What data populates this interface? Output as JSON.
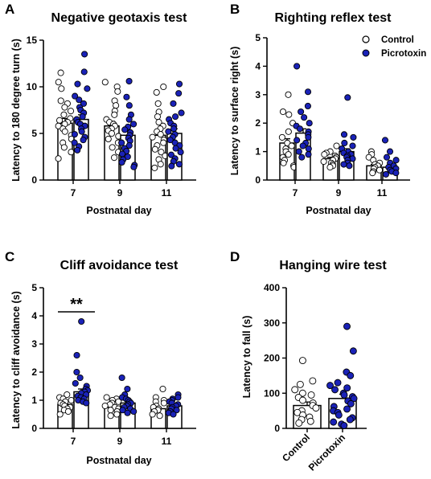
{
  "colors": {
    "control_fill": "#ffffff",
    "picrotoxin_fill": "#1a22b8",
    "stroke": "#000000"
  },
  "legend": {
    "items": [
      {
        "label": "Control",
        "color": "#ffffff"
      },
      {
        "label": "Picrotoxin",
        "color": "#1a22b8"
      }
    ]
  },
  "chart_data": [
    {
      "letter": "A",
      "type": "bar",
      "title": "Negative geotaxis test",
      "xlabel": "Postnatal day",
      "ylabel": "Latency to 180 degree turn (s)",
      "ylim": [
        0,
        15
      ],
      "yticks": [
        "0",
        "5",
        "10",
        "15"
      ],
      "categories": [
        "7",
        "9",
        "11"
      ],
      "grid": false,
      "series": [
        {
          "name": "Control",
          "values": [
            6.1,
            5.8,
            4.8
          ],
          "errors": [
            0.5,
            0.5,
            0.5
          ],
          "points": [
            [
              11.5,
              10.5,
              9.8,
              8.5,
              8.2,
              7.8,
              7.4,
              7.0,
              6.6,
              6.4,
              6.2,
              6.0,
              5.8,
              5.5,
              5.2,
              4.8,
              4.4,
              4.0,
              3.5,
              3.0,
              2.3
            ],
            [
              10.5,
              10.0,
              9.5,
              8.5,
              8.0,
              7.4,
              7.0,
              6.5,
              6.2,
              6.0,
              5.8,
              5.5,
              5.3,
              5.0,
              4.7,
              4.4,
              4.0,
              3.5,
              3.0,
              2.4
            ],
            [
              10.0,
              9.4,
              8.2,
              7.3,
              6.8,
              6.2,
              5.8,
              5.5,
              5.2,
              4.9,
              4.6,
              4.3,
              4.0,
              3.7,
              3.3,
              3.0,
              2.6,
              2.2,
              1.7,
              1.3
            ]
          ]
        },
        {
          "name": "Picrotoxin",
          "values": [
            6.5,
            4.8,
            5.0
          ],
          "errors": [
            0.5,
            0.5,
            0.5
          ],
          "points": [
            [
              13.5,
              11.6,
              10.3,
              9.8,
              9.0,
              8.6,
              8.2,
              7.8,
              7.5,
              7.2,
              6.8,
              6.5,
              6.2,
              6.0,
              5.8,
              5.5,
              5.2,
              4.9,
              4.6,
              4.3,
              4.0,
              3.6,
              3.2
            ],
            [
              10.6,
              8.9,
              8.0,
              7.0,
              6.5,
              6.0,
              5.7,
              5.4,
              5.1,
              4.8,
              4.5,
              4.2,
              4.0,
              3.7,
              3.4,
              3.1,
              2.8,
              2.5,
              2.2,
              1.9,
              1.6,
              1.4
            ],
            [
              10.3,
              9.3,
              8.2,
              7.2,
              6.8,
              6.5,
              6.1,
              5.8,
              5.5,
              5.2,
              4.9,
              4.6,
              4.3,
              4.0,
              3.7,
              3.4,
              3.0,
              2.7,
              2.3,
              2.0,
              1.7,
              1.5
            ]
          ]
        }
      ]
    },
    {
      "letter": "B",
      "type": "bar",
      "title": "Righting reflex test",
      "xlabel": "Postnatal day",
      "ylabel": "Latency to surface right (s)",
      "ylim": [
        0,
        5
      ],
      "yticks": [
        "0",
        "1",
        "2",
        "3",
        "4",
        "5"
      ],
      "categories": [
        "7",
        "9",
        "11"
      ],
      "grid": false,
      "legend_position": "top-right",
      "series": [
        {
          "name": "Control",
          "values": [
            1.3,
            0.75,
            0.5
          ],
          "errors": [
            0.15,
            0.05,
            0.05
          ],
          "points": [
            [
              3.0,
              2.4,
              2.3,
              2.0,
              1.7,
              1.5,
              1.3,
              1.2,
              1.1,
              1.0,
              0.9,
              0.8,
              0.7,
              0.6,
              0.5,
              0.45
            ],
            [
              1.2,
              1.0,
              0.95,
              0.9,
              0.85,
              0.8,
              0.75,
              0.7,
              0.65,
              0.6,
              0.55,
              0.5,
              0.45
            ],
            [
              1.0,
              0.9,
              0.8,
              0.7,
              0.6,
              0.55,
              0.5,
              0.45,
              0.4,
              0.35,
              0.3,
              0.25
            ]
          ]
        },
        {
          "name": "Picrotoxin",
          "values": [
            1.65,
            1.0,
            0.45
          ],
          "errors": [
            0.15,
            0.1,
            0.05
          ],
          "points": [
            [
              4.0,
              3.1,
              2.6,
              2.4,
              2.2,
              2.0,
              1.9,
              1.8,
              1.7,
              1.6,
              1.5,
              1.4,
              1.3,
              1.2,
              1.1,
              1.0,
              0.9,
              0.8
            ],
            [
              2.9,
              1.6,
              1.5,
              1.3,
              1.2,
              1.1,
              1.0,
              0.95,
              0.9,
              0.85,
              0.8,
              0.75,
              0.7,
              0.6,
              0.55,
              0.5
            ],
            [
              1.4,
              1.0,
              0.8,
              0.7,
              0.6,
              0.5,
              0.45,
              0.4,
              0.35,
              0.3,
              0.25,
              0.2
            ]
          ]
        }
      ]
    },
    {
      "letter": "C",
      "type": "bar",
      "title": "Cliff avoidance test",
      "xlabel": "Postnatal day",
      "ylabel": "Latency to cliff avoidance (s)",
      "ylim": [
        0,
        5
      ],
      "yticks": [
        "0",
        "1",
        "2",
        "3",
        "4",
        "5"
      ],
      "categories": [
        "7",
        "9",
        "11"
      ],
      "grid": false,
      "annotation": "**",
      "series": [
        {
          "name": "Control",
          "values": [
            0.85,
            0.75,
            0.7
          ],
          "errors": [
            0.05,
            0.05,
            0.05
          ],
          "points": [
            [
              1.2,
              1.1,
              1.05,
              1.0,
              0.95,
              0.9,
              0.85,
              0.8,
              0.75,
              0.7,
              0.65,
              0.6,
              0.5
            ],
            [
              1.1,
              1.05,
              1.0,
              0.95,
              0.9,
              0.85,
              0.8,
              0.75,
              0.7,
              0.65,
              0.6,
              0.5,
              0.45
            ],
            [
              1.4,
              1.1,
              1.0,
              0.95,
              0.9,
              0.8,
              0.75,
              0.7,
              0.65,
              0.6,
              0.5,
              0.45
            ]
          ]
        },
        {
          "name": "Picrotoxin",
          "values": [
            1.3,
            0.9,
            0.8
          ],
          "errors": [
            0.1,
            0.05,
            0.05
          ],
          "points": [
            [
              3.8,
              2.6,
              2.0,
              1.8,
              1.6,
              1.5,
              1.4,
              1.35,
              1.3,
              1.25,
              1.2,
              1.15,
              1.1,
              1.05,
              1.0,
              0.95,
              0.9
            ],
            [
              1.8,
              1.4,
              1.2,
              1.1,
              1.05,
              1.0,
              0.95,
              0.9,
              0.85,
              0.8,
              0.75,
              0.7,
              0.65,
              0.6,
              0.55
            ],
            [
              1.2,
              1.1,
              1.05,
              1.0,
              0.95,
              0.9,
              0.85,
              0.8,
              0.75,
              0.7,
              0.65,
              0.6,
              0.55,
              0.5
            ]
          ]
        }
      ]
    },
    {
      "letter": "D",
      "type": "bar",
      "title": "Hanging wire test",
      "xlabel": "",
      "ylabel": "Latency to fall (s)",
      "ylim": [
        0,
        400
      ],
      "yticks": [
        "0",
        "100",
        "200",
        "300",
        "400"
      ],
      "categories": [
        "Control",
        "Picrotoxin"
      ],
      "grid": false,
      "values": [
        65,
        85
      ],
      "errors": [
        10,
        12
      ],
      "colors": [
        "#ffffff",
        "#1a22b8"
      ],
      "points": [
        [
          193,
          135,
          125,
          110,
          100,
          95,
          88,
          80,
          72,
          65,
          58,
          50,
          45,
          38,
          32,
          25,
          20,
          15
        ],
        [
          290,
          220,
          160,
          150,
          130,
          122,
          115,
          110,
          100,
          95,
          90,
          85,
          78,
          70,
          62,
          55,
          50,
          45,
          38,
          30,
          25,
          18,
          12,
          8
        ]
      ]
    }
  ]
}
